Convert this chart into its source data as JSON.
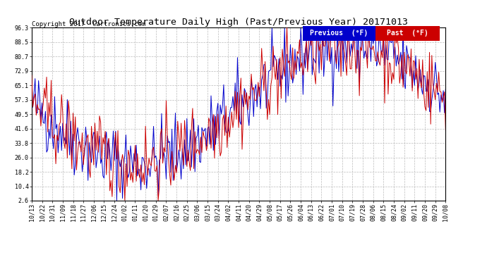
{
  "title": "Outdoor Temperature Daily High (Past/Previous Year) 20171013",
  "copyright": "Copyright 2017  Cartronics.com",
  "legend_previous": "Previous  (°F)",
  "legend_past": "Past  (°F)",
  "previous_color": "#0000cc",
  "past_color": "#cc0000",
  "background_color": "#ffffff",
  "plot_bg_color": "#ffffff",
  "yticks": [
    2.6,
    10.4,
    18.2,
    26.0,
    33.8,
    41.6,
    49.5,
    57.3,
    65.1,
    72.9,
    80.7,
    88.5,
    96.3
  ],
  "xtick_labels": [
    "10/13",
    "10/22",
    "10/31",
    "11/09",
    "11/18",
    "11/27",
    "12/06",
    "12/15",
    "12/24",
    "01/02",
    "01/11",
    "01/20",
    "01/29",
    "02/07",
    "02/16",
    "02/25",
    "03/06",
    "03/15",
    "03/24",
    "04/02",
    "04/11",
    "04/20",
    "04/29",
    "05/08",
    "05/17",
    "05/26",
    "06/04",
    "06/13",
    "06/22",
    "07/01",
    "07/10",
    "07/19",
    "07/28",
    "08/06",
    "08/15",
    "08/24",
    "09/02",
    "09/11",
    "09/20",
    "09/29",
    "10/08"
  ],
  "title_fontsize": 9.5,
  "copyright_fontsize": 6.5,
  "tick_fontsize": 6,
  "legend_fontsize": 7,
  "grid_color": "#bbbbbb",
  "grid_linestyle": "--",
  "ymin": 2.6,
  "ymax": 96.3,
  "line_width": 0.7,
  "n_days": 361,
  "seed": 42
}
